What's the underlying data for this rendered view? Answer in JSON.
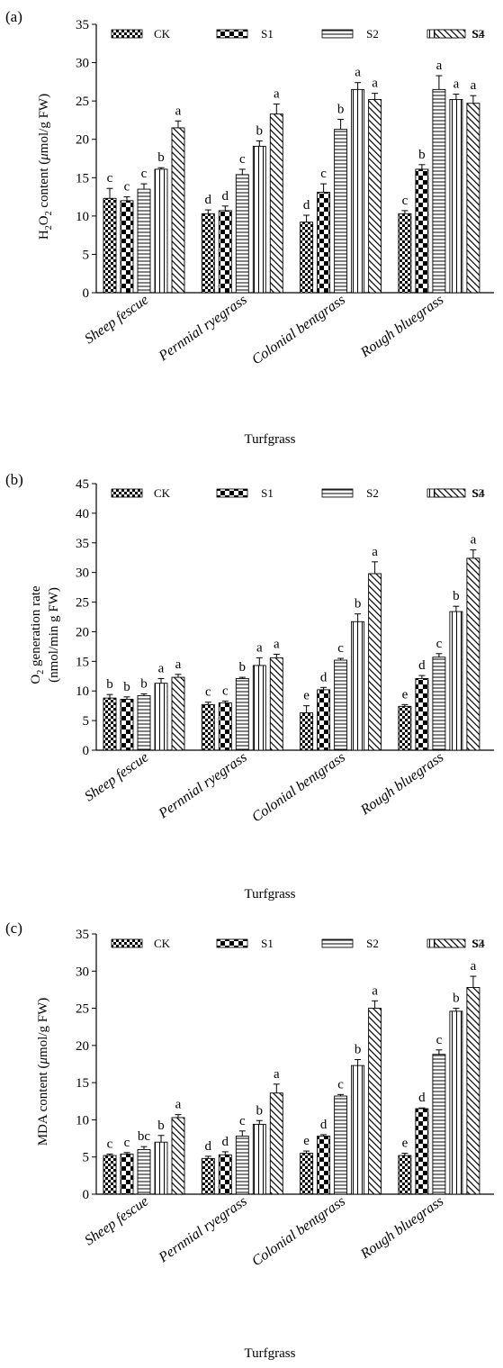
{
  "legend": [
    "CK",
    "S1",
    "S2",
    "S3",
    "S4"
  ],
  "chart_data": [
    {
      "type": "bar",
      "panel_label": "(a)",
      "title": "",
      "xlabel": "Turfgrass",
      "ylabel": "H2O2 content (μmol/g FW)",
      "ylabel_parts": {
        "pre": "H",
        "sub1": "2",
        "mid": "O",
        "sub2": "2",
        "post": " content (",
        "mu": "μ",
        "tail": "mol/g FW)"
      },
      "ylim": [
        0,
        35
      ],
      "yticks": [
        0,
        5,
        10,
        15,
        20,
        25,
        30,
        35
      ],
      "categories": [
        "Sheep fescue",
        "Pernnial ryegrass",
        "Colonial bentgrass",
        "Rough bluegrass"
      ],
      "series": [
        {
          "name": "CK",
          "values": [
            12.3,
            10.3,
            9.2,
            10.3
          ],
          "errors": [
            1.3,
            0.5,
            0.9,
            0.4
          ],
          "labels": [
            "c",
            "d",
            "d",
            "c"
          ]
        },
        {
          "name": "S1",
          "values": [
            12.0,
            10.7,
            13.1,
            16.1
          ],
          "errors": [
            0.5,
            0.6,
            1.1,
            0.6
          ],
          "labels": [
            "c",
            "d",
            "c",
            "b"
          ]
        },
        {
          "name": "S2",
          "values": [
            13.5,
            15.4,
            21.3,
            26.5
          ],
          "errors": [
            0.7,
            0.7,
            1.3,
            1.8
          ],
          "labels": [
            "c",
            "c",
            "b",
            "a"
          ]
        },
        {
          "name": "S3",
          "values": [
            16.1,
            19.1,
            26.5,
            25.2
          ],
          "errors": [
            0.2,
            0.7,
            0.9,
            0.7
          ],
          "labels": [
            "b",
            "b",
            "a",
            "a"
          ]
        },
        {
          "name": "S4",
          "values": [
            21.5,
            23.3,
            25.2,
            24.7
          ],
          "errors": [
            0.9,
            1.3,
            0.8,
            1.0
          ],
          "labels": [
            "a",
            "a",
            "a",
            "a"
          ]
        }
      ]
    },
    {
      "type": "bar",
      "panel_label": "(b)",
      "title": "",
      "xlabel": "Turfgrass",
      "ylabel": "O2 generation rate (nmol/min g FW)",
      "ylabel_parts": {
        "pre": "O",
        "sub": "2",
        "post": " generation rate",
        "line2": "(nmol/min g FW)"
      },
      "ylim": [
        0,
        45
      ],
      "yticks": [
        0,
        5,
        10,
        15,
        20,
        25,
        30,
        35,
        40,
        45
      ],
      "categories": [
        "Sheep fescue",
        "Pernnial ryegrass",
        "Colonial bentgrass",
        "Rough bluegrass"
      ],
      "series": [
        {
          "name": "CK",
          "values": [
            8.8,
            7.7,
            6.3,
            7.4
          ],
          "errors": [
            0.6,
            0.4,
            1.2,
            0.3
          ],
          "labels": [
            "b",
            "c",
            "e",
            "e"
          ]
        },
        {
          "name": "S1",
          "values": [
            8.6,
            8.0,
            10.2,
            12.1
          ],
          "errors": [
            0.4,
            0.3,
            0.4,
            0.5
          ],
          "labels": [
            "b",
            "c",
            "d",
            "d"
          ]
        },
        {
          "name": "S2",
          "values": [
            9.2,
            12.1,
            15.2,
            15.7
          ],
          "errors": [
            0.3,
            0.2,
            0.3,
            0.6
          ],
          "labels": [
            "b",
            "b",
            "c",
            "c"
          ]
        },
        {
          "name": "S3",
          "values": [
            11.3,
            14.3,
            21.7,
            23.4
          ],
          "errors": [
            0.8,
            1.3,
            1.3,
            0.9
          ],
          "labels": [
            "a",
            "a",
            "b",
            "b"
          ]
        },
        {
          "name": "S4",
          "values": [
            12.3,
            15.6,
            29.8,
            32.4
          ],
          "errors": [
            0.5,
            0.6,
            2.0,
            1.4
          ],
          "labels": [
            "a",
            "a",
            "a",
            "a"
          ]
        }
      ]
    },
    {
      "type": "bar",
      "panel_label": "(c)",
      "title": "",
      "xlabel": "Turfgrass",
      "ylabel": "MDA content (μmol/g FW)",
      "ylabel_parts": {
        "pre": "MDA content (",
        "mu": "μ",
        "tail": "mol/g FW)"
      },
      "ylim": [
        0,
        35
      ],
      "yticks": [
        0,
        5,
        10,
        15,
        20,
        25,
        30,
        35
      ],
      "categories": [
        "Sheep fescue",
        "Pernnial ryegrass",
        "Colonial bentgrass",
        "Rough bluegrass"
      ],
      "series": [
        {
          "name": "CK",
          "values": [
            5.2,
            4.8,
            5.5,
            5.2
          ],
          "errors": [
            0.2,
            0.3,
            0.3,
            0.3
          ],
          "labels": [
            "c",
            "d",
            "e",
            "e"
          ]
        },
        {
          "name": "S1",
          "values": [
            5.4,
            5.3,
            7.8,
            11.5
          ],
          "errors": [
            0.2,
            0.4,
            0.2,
            0.1
          ],
          "labels": [
            "c",
            "d",
            "d",
            "d"
          ]
        },
        {
          "name": "S2",
          "values": [
            6.0,
            7.8,
            13.2,
            18.8
          ],
          "errors": [
            0.4,
            0.7,
            0.2,
            0.6
          ],
          "labels": [
            "bc",
            "c",
            "c",
            "c"
          ]
        },
        {
          "name": "S3",
          "values": [
            7.0,
            9.4,
            17.3,
            24.6
          ],
          "errors": [
            0.9,
            0.5,
            0.8,
            0.4
          ],
          "labels": [
            "b",
            "b",
            "b",
            "b"
          ]
        },
        {
          "name": "S4",
          "values": [
            10.3,
            13.6,
            25.0,
            27.8
          ],
          "errors": [
            0.4,
            1.2,
            1.0,
            1.5
          ],
          "labels": [
            "a",
            "a",
            "a",
            "a"
          ]
        }
      ]
    }
  ]
}
